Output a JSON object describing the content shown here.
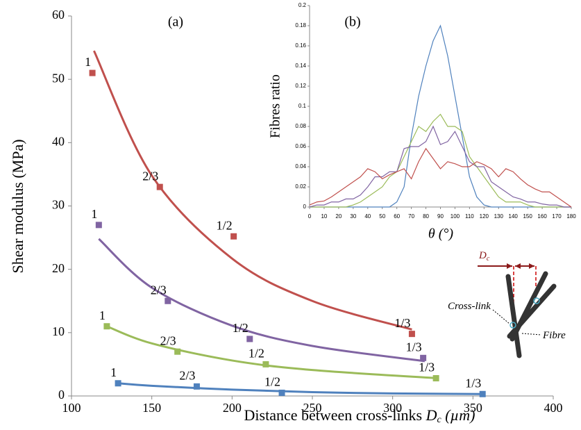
{
  "chart_data": [
    {
      "type": "scatter",
      "title": "(a)",
      "y_label": "Shear modulus (MPa)",
      "x_label": "Distance between cross-links",
      "x_label_symbol": "D",
      "x_label_sub": "c",
      "x_label_unit": "(µm)",
      "xlim": [
        100,
        400
      ],
      "xticks": [
        100,
        150,
        200,
        250,
        300,
        350,
        400
      ],
      "ylim": [
        0,
        60
      ],
      "yticks": [
        0,
        10,
        20,
        30,
        40,
        50,
        60
      ],
      "series": [
        {
          "color": "#c0504d",
          "x": [
            113,
            155,
            201,
            312
          ],
          "values": [
            51,
            33,
            25.2,
            9.8
          ],
          "point_labels": [
            "1",
            "2/3",
            "1/2",
            "1/3"
          ],
          "fit_x": [
            114,
            150,
            200,
            250,
            312
          ],
          "fit_values": [
            54.5,
            34.8,
            21.7,
            15.0,
            10.5
          ]
        },
        {
          "color": "#8064a2",
          "x": [
            117,
            160,
            211,
            319
          ],
          "values": [
            27,
            15,
            9,
            6
          ],
          "point_labels": [
            "1",
            "2/3",
            "1/2",
            "1/3"
          ],
          "fit_x": [
            117,
            150,
            200,
            250,
            320
          ],
          "fit_values": [
            24.8,
            17.1,
            11.1,
            7.9,
            5.5
          ]
        },
        {
          "color": "#9bbb59",
          "x": [
            122,
            166,
            221,
            327
          ],
          "values": [
            11,
            7,
            5,
            2.8
          ],
          "point_labels": [
            "1",
            "2/3",
            "1/2",
            "1/3"
          ],
          "fit_x": [
            122,
            150,
            200,
            250,
            328
          ],
          "fit_values": [
            11,
            8.3,
            5.6,
            4.1,
            2.8
          ]
        },
        {
          "color": "#4f81bd",
          "x": [
            129,
            178,
            231,
            356
          ],
          "values": [
            2,
            1.5,
            0.5,
            0.3
          ],
          "point_labels": [
            "1",
            "2/3",
            "1/2",
            "1/3"
          ],
          "fit_x": [
            129,
            150,
            200,
            250,
            300,
            356
          ],
          "fit_values": [
            2,
            1.6,
            1.0,
            0.6,
            0.4,
            0.3
          ]
        }
      ]
    },
    {
      "type": "line",
      "title": "(b)",
      "y_label": "Fibres ratio",
      "x_label": "θ (°)",
      "xlim": [
        0,
        180
      ],
      "xticks": [
        0,
        10,
        20,
        30,
        40,
        50,
        60,
        70,
        80,
        90,
        100,
        110,
        120,
        130,
        140,
        150,
        160,
        170,
        180
      ],
      "ylim": [
        0,
        0.2
      ],
      "yticks": [
        0,
        0.02,
        0.04,
        0.06,
        0.08,
        0.1,
        0.12,
        0.14,
        0.16,
        0.18,
        0.2
      ],
      "x": [
        0,
        5,
        10,
        15,
        20,
        25,
        30,
        35,
        40,
        45,
        50,
        55,
        60,
        65,
        70,
        75,
        80,
        85,
        90,
        95,
        100,
        105,
        110,
        115,
        120,
        125,
        130,
        135,
        140,
        145,
        150,
        155,
        160,
        165,
        170,
        175,
        180
      ],
      "series": [
        {
          "color": "#4f81bd",
          "values": [
            0,
            0,
            0,
            0,
            0,
            0,
            0,
            0,
            0,
            0,
            0,
            0,
            0.005,
            0.02,
            0.07,
            0.11,
            0.14,
            0.165,
            0.18,
            0.15,
            0.11,
            0.07,
            0.03,
            0.01,
            0.002,
            0,
            0,
            0,
            0,
            0,
            0,
            0,
            0,
            0,
            0,
            0,
            0
          ]
        },
        {
          "color": "#9bbb59",
          "values": [
            0,
            0,
            0,
            0,
            0,
            0,
            0.002,
            0.005,
            0.01,
            0.015,
            0.02,
            0.03,
            0.035,
            0.05,
            0.065,
            0.08,
            0.075,
            0.085,
            0.092,
            0.08,
            0.08,
            0.075,
            0.05,
            0.04,
            0.03,
            0.02,
            0.01,
            0.005,
            0.005,
            0.005,
            0.002,
            0,
            0,
            0,
            0,
            0,
            0
          ]
        },
        {
          "color": "#8064a2",
          "values": [
            0,
            0.002,
            0.002,
            0.005,
            0.005,
            0.008,
            0.008,
            0.012,
            0.02,
            0.03,
            0.03,
            0.035,
            0.035,
            0.058,
            0.06,
            0.06,
            0.065,
            0.08,
            0.062,
            0.065,
            0.075,
            0.06,
            0.045,
            0.04,
            0.04,
            0.025,
            0.02,
            0.015,
            0.01,
            0.008,
            0.005,
            0.005,
            0.003,
            0.002,
            0.002,
            0,
            0
          ]
        },
        {
          "color": "#c0504d",
          "values": [
            0.002,
            0.005,
            0.006,
            0.01,
            0.015,
            0.02,
            0.025,
            0.03,
            0.038,
            0.035,
            0.028,
            0.032,
            0.035,
            0.038,
            0.028,
            0.045,
            0.058,
            0.048,
            0.038,
            0.045,
            0.043,
            0.04,
            0.04,
            0.045,
            0.042,
            0.038,
            0.03,
            0.038,
            0.035,
            0.028,
            0.022,
            0.018,
            0.015,
            0.015,
            0.01,
            0.005,
            0
          ]
        }
      ]
    }
  ],
  "diagram": {
    "dc_symbol": "D",
    "dc_sub": "c",
    "crosslink": "Cross-link",
    "fibre": "Fibre"
  }
}
